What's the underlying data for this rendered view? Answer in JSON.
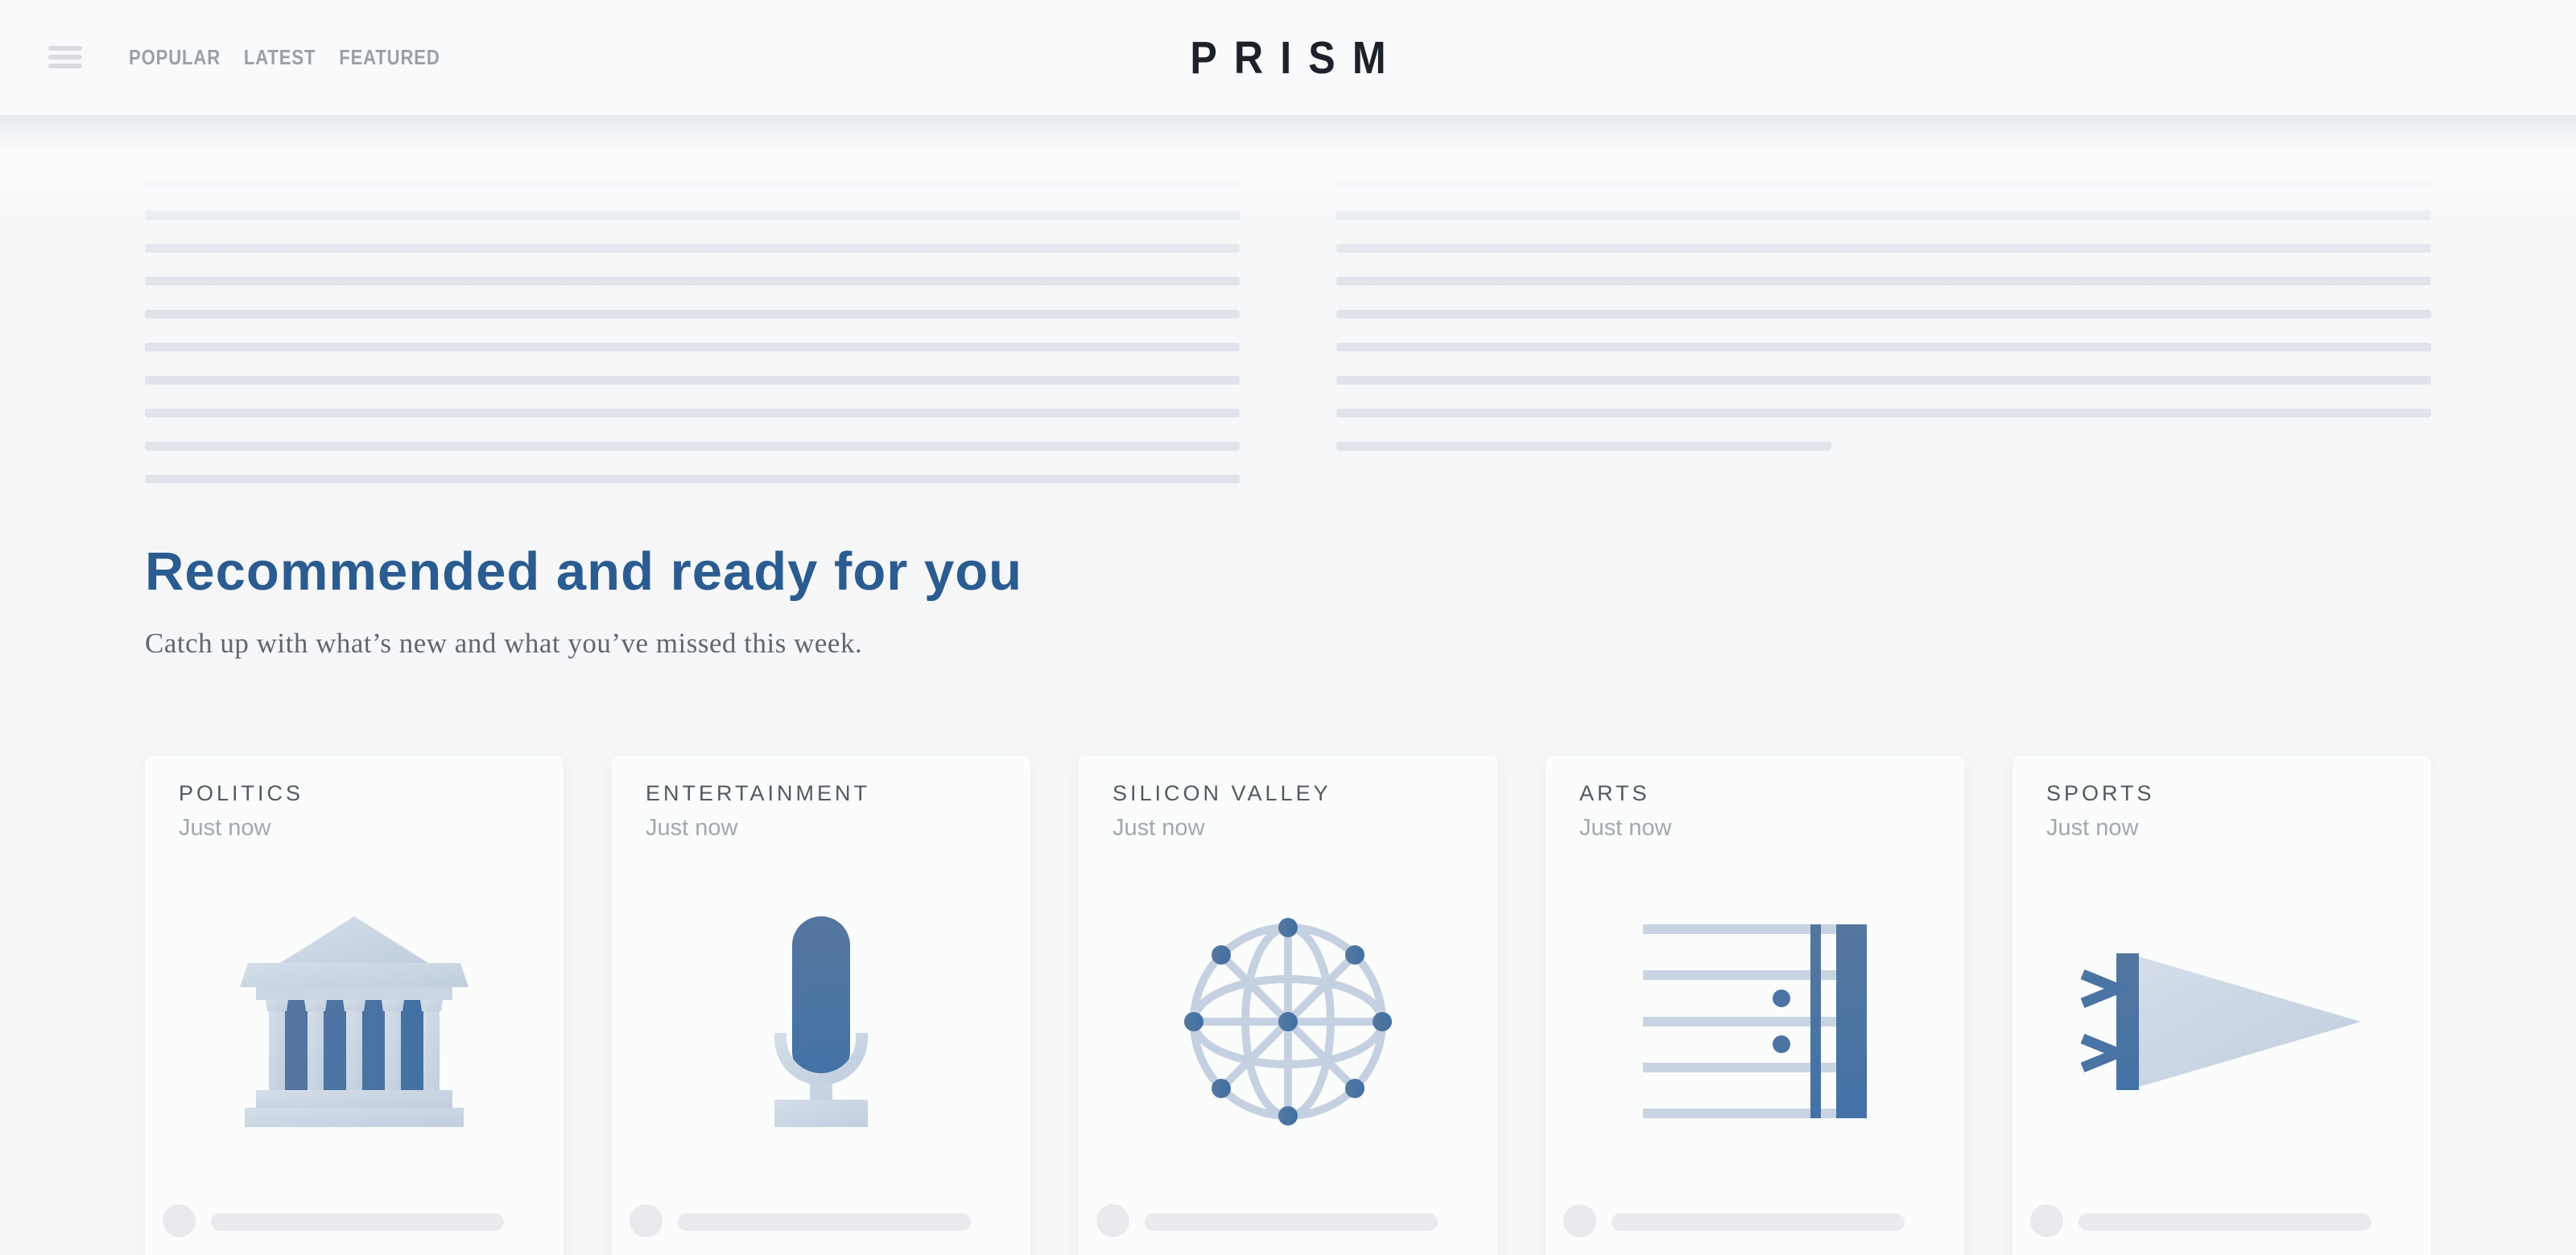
{
  "header": {
    "logo": "PRISM",
    "nav_items": [
      "POPULAR",
      "LATEST",
      "FEATURED"
    ]
  },
  "recommended": {
    "title": "Recommended and ready for you",
    "subtitle": "Catch up with what’s new and what you’ve missed this week."
  },
  "skeleton": {
    "left_line_count": 11,
    "right_line_count": 9,
    "right_short_line": true
  },
  "cards": [
    {
      "category": "POLITICS",
      "timestamp": "Just now",
      "icon": "bank-icon"
    },
    {
      "category": "ENTERTAINMENT",
      "timestamp": "Just now",
      "icon": "microphone-icon"
    },
    {
      "category": "SILICON VALLEY",
      "timestamp": "Just now",
      "icon": "globe-network-icon"
    },
    {
      "category": "ARTS",
      "timestamp": "Just now",
      "icon": "sheet-music-icon"
    },
    {
      "category": "SPORTS",
      "timestamp": "Just now",
      "icon": "pennant-icon"
    }
  ],
  "colors": {
    "heading_blue": "#2b5c91",
    "icon_dark_blue": "#4a74a4",
    "icon_light_blue": "#c7d3e2",
    "logo_ink": "#1b222a",
    "skeleton_line": "#e0e4ea"
  }
}
